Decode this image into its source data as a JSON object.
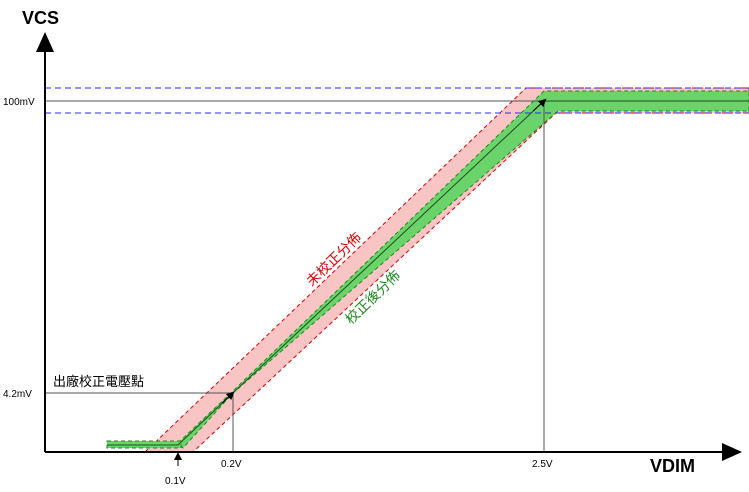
{
  "axes": {
    "y_title": "VCS",
    "x_title": "VDIM"
  },
  "y_ticks": {
    "top": "100mV",
    "low": "4.2mV"
  },
  "x_ticks": {
    "t01": "0.1V",
    "t02": "0.2V",
    "t25": "2.5V"
  },
  "labels": {
    "factory_point": "出廠校正電壓點",
    "uncalibrated": "未校正分佈",
    "calibrated": "校正後分佈"
  },
  "colors": {
    "red_band_fill": "#f9c4c4",
    "red_band_stroke": "#e00000",
    "green_band_fill": "#6ad36a",
    "green_band_stroke": "#1a8a1a",
    "dashed_blue": "#2a2aff"
  }
}
